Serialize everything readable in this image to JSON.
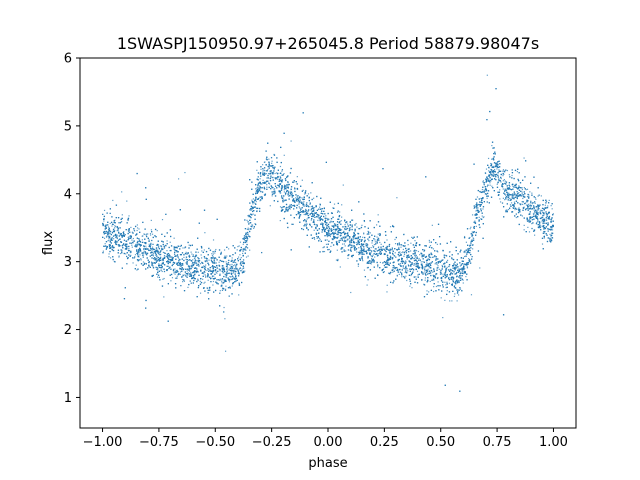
{
  "chart_data": {
    "type": "scatter",
    "title": "1SWASPJ150950.97+265045.8 Period 58879.98047s",
    "xlabel": "phase",
    "ylabel": "flux",
    "xlim": [
      -1.1,
      1.1
    ],
    "ylim": [
      0.55,
      6.0
    ],
    "xticks": [
      -1.0,
      -0.75,
      -0.5,
      -0.25,
      0.0,
      0.25,
      0.5,
      0.75,
      1.0
    ],
    "xtick_labels": [
      "−1.00",
      "−0.75",
      "−0.50",
      "−0.25",
      "0.00",
      "0.25",
      "0.50",
      "0.75",
      "1.00"
    ],
    "yticks": [
      1,
      2,
      3,
      4,
      5,
      6
    ],
    "ytick_labels": [
      "1",
      "2",
      "3",
      "4",
      "5",
      "6"
    ],
    "grid": false,
    "legend": "none",
    "series": [
      {
        "marker_color": "#1f77b4",
        "trend": {
          "phase": [
            -1.0,
            -0.9,
            -0.8,
            -0.7,
            -0.6,
            -0.5,
            -0.42,
            -0.38,
            -0.34,
            -0.3,
            -0.27,
            -0.25,
            -0.2,
            -0.1,
            0.0,
            0.1,
            0.2,
            0.3,
            0.4,
            0.5,
            0.58,
            0.62,
            0.66,
            0.7,
            0.73,
            0.75,
            0.8,
            0.9,
            1.0
          ],
          "flux": [
            3.45,
            3.3,
            3.15,
            3.02,
            2.95,
            2.88,
            2.8,
            3.05,
            3.7,
            4.1,
            4.35,
            4.3,
            4.05,
            3.75,
            3.5,
            3.32,
            3.15,
            3.05,
            2.97,
            2.9,
            2.8,
            3.05,
            3.7,
            4.1,
            4.35,
            4.3,
            4.05,
            3.75,
            3.5
          ]
        },
        "scatter_width": 0.16,
        "n_points": 9000
      }
    ]
  }
}
